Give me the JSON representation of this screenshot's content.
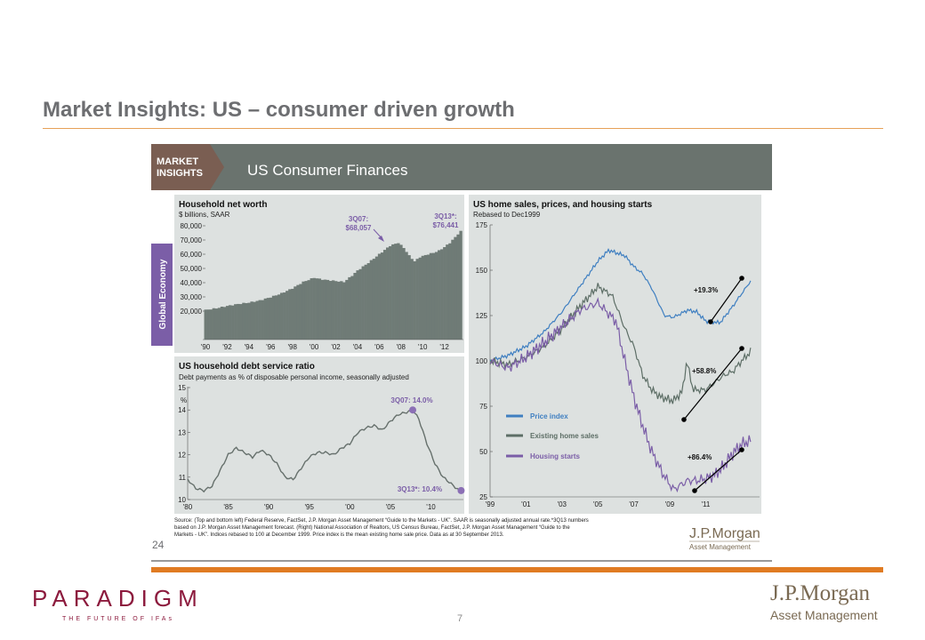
{
  "slide": {
    "title": "Market Insights: US – consumer driven growth",
    "page_number": "7",
    "paradigm_logo": "PARADIGM",
    "paradigm_tagline": "THE FUTURE OF IFAs",
    "jpm_logo": "J.P.Morgan",
    "jpm_sub": "Asset Management"
  },
  "header": {
    "badge_line1": "MARKET",
    "badge_line2": "INSIGHTS",
    "title": "US Consumer Finances",
    "side_tab": "Global Economy",
    "page": "24"
  },
  "colors": {
    "header_bg": "#6a736e",
    "badge_bg": "#7a5e52",
    "panel_bg": "#dde1e0",
    "side_tab": "#7b5ea7",
    "bar_fill": "#6f7b76",
    "price_index": "#3f7fc1",
    "existing_sales": "#5d6e66",
    "housing_starts": "#7b5ea7",
    "debt_line": "#66706c",
    "orange": "#e07b22"
  },
  "footnote": {
    "line1": "Source: (Top and bottom left) Federal Reserve, FactSet, J.P. Morgan Asset Management “Guide to the Markets - UK”. SAAR is seasonally adjusted annual rate.*3Q13 numbers",
    "line2": "based on J.P. Morgan Asset Management forecast. (Right) National Association of Realtors, US Census Bureau, FactSet, J.P. Morgan Asset Management “Guide to the",
    "line3": "Markets - UK”. Indices rebased to 100 at December 1999. Price index is the mean existing home sale price. Data as at 30 September 2013."
  },
  "chart_data": [
    {
      "id": "net_worth",
      "type": "bar",
      "title": "Household net worth",
      "subtitle": "$ billions, SAAR",
      "ylim": [
        0,
        80000
      ],
      "yticks": [
        20000,
        30000,
        40000,
        50000,
        60000,
        70000,
        80000
      ],
      "ytick_labels": [
        "20,000",
        "30,000",
        "40,000",
        "50,000",
        "60,000",
        "70,000",
        "80,000"
      ],
      "xlim": [
        1989.75,
        2013.75
      ],
      "xticks": [
        1990,
        1992,
        1994,
        1996,
        1998,
        2000,
        2002,
        2004,
        2006,
        2008,
        2010,
        2012
      ],
      "xtick_labels": [
        "'90",
        "'92",
        "'94",
        "'96",
        "'98",
        "'00",
        "'02",
        "'04",
        "'06",
        "'08",
        "'10",
        "'12"
      ],
      "anchors": [
        [
          1990,
          20800
        ],
        [
          1991,
          22000
        ],
        [
          1992,
          23600
        ],
        [
          1993,
          25000
        ],
        [
          1994,
          26000
        ],
        [
          1995,
          27500
        ],
        [
          1996,
          29800
        ],
        [
          1997,
          32500
        ],
        [
          1998,
          36000
        ],
        [
          1999,
          40500
        ],
        [
          2000,
          43500
        ],
        [
          2000.5,
          42600
        ],
        [
          2001,
          42000
        ],
        [
          2002.75,
          40500
        ],
        [
          2003.5,
          45000
        ],
        [
          2004,
          48500
        ],
        [
          2005,
          54000
        ],
        [
          2006,
          60000
        ],
        [
          2007,
          66000
        ],
        [
          2007.75,
          68057
        ],
        [
          2008.25,
          64500
        ],
        [
          2008.75,
          59000
        ],
        [
          2009.25,
          55000
        ],
        [
          2009.75,
          58000
        ],
        [
          2010.5,
          60000
        ],
        [
          2011,
          61000
        ],
        [
          2011.5,
          62500
        ],
        [
          2012,
          65000
        ],
        [
          2012.5,
          68000
        ],
        [
          2013,
          72000
        ],
        [
          2013.5,
          76441
        ]
      ],
      "annotations": [
        {
          "line1": "3Q07:",
          "line2": "$68,057"
        },
        {
          "line1": "3Q13*:",
          "line2": "$76,441"
        }
      ]
    },
    {
      "id": "debt_service",
      "type": "line",
      "title": "US household debt service ratio",
      "subtitle": "Debt payments as % of disposable personal income, seasonally adjusted",
      "ylabel": "%",
      "ylim": [
        10,
        15
      ],
      "yticks": [
        10,
        11,
        12,
        13,
        14,
        15
      ],
      "ytick_labels": [
        "10",
        "11",
        "12",
        "13",
        "14",
        "15"
      ],
      "xlim": [
        1980,
        2014
      ],
      "xticks": [
        1980,
        1985,
        1990,
        1995,
        2000,
        2005,
        2010
      ],
      "xtick_labels": [
        "'80",
        "'85",
        "'90",
        "'95",
        "'00",
        "'05",
        "'10"
      ],
      "points": [
        [
          1980,
          10.9
        ],
        [
          1981,
          10.5
        ],
        [
          1982,
          10.4
        ],
        [
          1983,
          10.6
        ],
        [
          1984,
          11.3
        ],
        [
          1985,
          12.0
        ],
        [
          1986,
          12.3
        ],
        [
          1987,
          12.1
        ],
        [
          1988,
          11.9
        ],
        [
          1989,
          12.2
        ],
        [
          1990,
          12.0
        ],
        [
          1991,
          11.6
        ],
        [
          1992,
          11.0
        ],
        [
          1993,
          10.9
        ],
        [
          1994,
          11.4
        ],
        [
          1995,
          11.9
        ],
        [
          1996,
          12.1
        ],
        [
          1997,
          12.1
        ],
        [
          1998,
          12.0
        ],
        [
          1999,
          12.3
        ],
        [
          2000,
          12.5
        ],
        [
          2001,
          13.0
        ],
        [
          2002,
          13.2
        ],
        [
          2003,
          13.3
        ],
        [
          2004,
          13.1
        ],
        [
          2005,
          13.5
        ],
        [
          2006,
          13.8
        ],
        [
          2007,
          13.9
        ],
        [
          2007.75,
          14.0
        ],
        [
          2008.5,
          13.6
        ],
        [
          2009.5,
          12.5
        ],
        [
          2010.5,
          11.6
        ],
        [
          2011.5,
          11.0
        ],
        [
          2012.5,
          10.7
        ],
        [
          2013.5,
          10.4
        ]
      ],
      "annotations": [
        {
          "label": "3Q07: 14.0%",
          "x": 2007.75,
          "y": 14.0
        },
        {
          "label": "3Q13*: 10.4%",
          "x": 2013.5,
          "y": 10.4
        }
      ]
    },
    {
      "id": "home_sales",
      "type": "line",
      "title": "US home sales, prices, and housing starts",
      "subtitle": "Rebased to Dec1999",
      "ylim": [
        25,
        175
      ],
      "yticks": [
        25,
        50,
        75,
        100,
        125,
        150,
        175
      ],
      "ytick_labels": [
        "25",
        "50",
        "75",
        "100",
        "125",
        "150",
        "175"
      ],
      "xlim": [
        1999,
        2014
      ],
      "xticks": [
        1999,
        2001,
        2003,
        2005,
        2007,
        2009,
        2011
      ],
      "xtick_labels": [
        "'99",
        "'01",
        "'03",
        "'05",
        "'07",
        "'09",
        "'11"
      ],
      "series": [
        {
          "name": "Price index",
          "anchors": [
            [
              1999,
              100
            ],
            [
              2000,
              103
            ],
            [
              2001,
              108
            ],
            [
              2002,
              116
            ],
            [
              2003,
              127
            ],
            [
              2004,
              141
            ],
            [
              2005,
              155
            ],
            [
              2005.6,
              161
            ],
            [
              2006.5,
              158
            ],
            [
              2007,
              152
            ],
            [
              2007.5,
              148
            ],
            [
              2008,
              140
            ],
            [
              2008.7,
              125
            ],
            [
              2009.2,
              124
            ],
            [
              2010,
              128
            ],
            [
              2010.5,
              127
            ],
            [
              2011,
              122
            ],
            [
              2011.8,
              121
            ],
            [
              2012.5,
              130
            ],
            [
              2013.5,
              144
            ]
          ],
          "noise": 1.2
        },
        {
          "name": "Existing home sales",
          "anchors": [
            [
              1999,
              100
            ],
            [
              2000,
              98
            ],
            [
              2001,
              102
            ],
            [
              2002,
              108
            ],
            [
              2003,
              118
            ],
            [
              2004,
              130
            ],
            [
              2005,
              141
            ],
            [
              2005.8,
              136
            ],
            [
              2006.5,
              118
            ],
            [
              2007,
              108
            ],
            [
              2007.5,
              92
            ],
            [
              2008,
              84
            ],
            [
              2008.5,
              80
            ],
            [
              2009.2,
              78
            ],
            [
              2009.7,
              83
            ],
            [
              2009.95,
              100
            ],
            [
              2010.3,
              84
            ],
            [
              2011,
              84
            ],
            [
              2011.5,
              88
            ],
            [
              2012,
              92
            ],
            [
              2012.5,
              94
            ],
            [
              2013,
              100
            ],
            [
              2013.5,
              105
            ]
          ],
          "noise": 2.5
        },
        {
          "name": "Housing starts",
          "anchors": [
            [
              1999,
              100
            ],
            [
              2000,
              96
            ],
            [
              2001,
              102
            ],
            [
              2002,
              110
            ],
            [
              2003,
              119
            ],
            [
              2004,
              128
            ],
            [
              2005,
              132
            ],
            [
              2006,
              122
            ],
            [
              2006.5,
              100
            ],
            [
              2007,
              80
            ],
            [
              2007.5,
              64
            ],
            [
              2008,
              50
            ],
            [
              2008.6,
              38
            ],
            [
              2009.2,
              29
            ],
            [
              2010,
              34
            ],
            [
              2010.5,
              34
            ],
            [
              2011,
              35
            ],
            [
              2011.5,
              37
            ],
            [
              2012,
              42
            ],
            [
              2012.5,
              49
            ],
            [
              2013,
              54
            ],
            [
              2013.5,
              56
            ]
          ],
          "noise": 4
        }
      ],
      "change_annotations": [
        {
          "label": "+19.3%"
        },
        {
          "label": "+58.8%"
        },
        {
          "label": "+86.4%"
        }
      ]
    }
  ]
}
